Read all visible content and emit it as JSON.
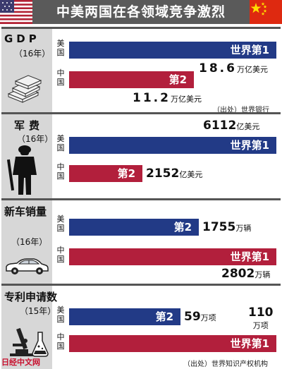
{
  "header": {
    "title": "中美两国在各领域竞争激烈"
  },
  "colors": {
    "us_bar": "#223a86",
    "cn_bar": "#b21f3c",
    "panel_left_bg": "#d7d7d7",
    "header_bg": "#5a5a5a"
  },
  "chart_data": [
    {
      "type": "bar",
      "title": "GDP",
      "year_note": "（16年）",
      "series": [
        {
          "name": "美国",
          "value": 18.6,
          "value_text": "18.6",
          "unit": "万亿美元",
          "rank_label": "世界第1"
        },
        {
          "name": "中国",
          "value": 11.2,
          "value_text": "11.2",
          "unit": "万亿美元",
          "rank_label": "第2"
        }
      ],
      "source": "（出处）世界银行"
    },
    {
      "type": "bar",
      "title": "军费",
      "year_note": "（16年）",
      "series": [
        {
          "name": "美国",
          "value": 6112,
          "value_text": "6112",
          "unit": "亿美元",
          "rank_label": "世界第1"
        },
        {
          "name": "中国",
          "value": 2152,
          "value_text": "2152",
          "unit": "亿美元",
          "rank_label": "第2"
        }
      ]
    },
    {
      "type": "bar",
      "title": "新车销量",
      "year_note": "（16年）",
      "series": [
        {
          "name": "美国",
          "value": 1755,
          "value_text": "1755",
          "unit": "万辆",
          "rank_label": "第2"
        },
        {
          "name": "中国",
          "value": 2802,
          "value_text": "2802",
          "unit": "万辆",
          "rank_label": "世界第1"
        }
      ]
    },
    {
      "type": "bar",
      "title": "专利申请数",
      "year_note": "（15年）",
      "series": [
        {
          "name": "美国",
          "value": 59,
          "value_text": "59",
          "unit": "万项",
          "rank_label": "第2"
        },
        {
          "name": "中国",
          "value": 110,
          "value_text": "110",
          "unit": "万项",
          "rank_label": "世界第1"
        }
      ],
      "source": "（出处）世界知识产权机构"
    }
  ],
  "watermark": "日经中文网",
  "icons": [
    "us-flag-icon",
    "china-flag-icon",
    "money-stack-icon",
    "soldier-icon",
    "car-icon",
    "lab-flask-icon"
  ]
}
